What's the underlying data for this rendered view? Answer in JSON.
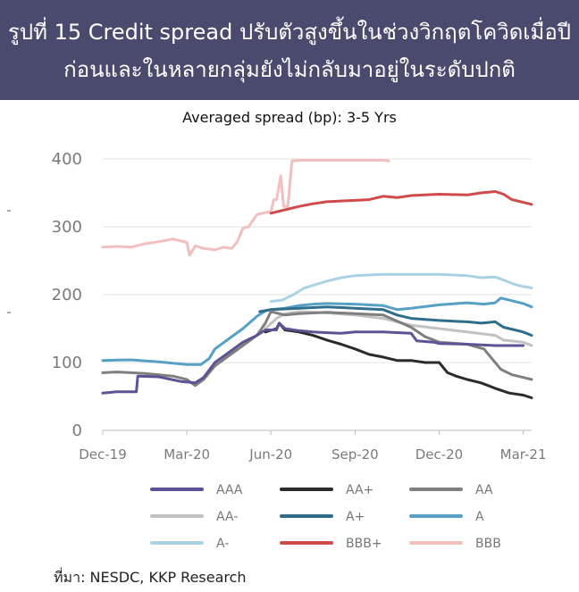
{
  "header": {
    "line1": "รูปที่ 15 Credit spread ปรับตัวสูงขึ้นในช่วงวิกฤตโควิดเมื่อปี",
    "line2": "ก่อนและในหลายกลุ่มยังไม่กลับมาอยู่ในระดับปกติ"
  },
  "source": "ที่มา: NESDC, KKP Research",
  "chart_data": {
    "type": "line",
    "title": "Averaged spread (bp): 3-5 Yrs",
    "xlabel": "",
    "ylabel": "",
    "x_ticks": [
      "Dec-19",
      "Mar-20",
      "Jun-20",
      "Sep-20",
      "Dec-20",
      "Mar-21"
    ],
    "x_tick_pos": [
      0,
      3,
      6,
      9,
      12,
      15
    ],
    "xlim": [
      0,
      15.3
    ],
    "y_ticks": [
      0,
      100,
      200,
      300,
      400
    ],
    "ylim": [
      0,
      400
    ],
    "grid": true,
    "legend_position": "bottom",
    "series": [
      {
        "name": "AAA",
        "color": "#5b5396",
        "points": [
          [
            0,
            55
          ],
          [
            0.5,
            57
          ],
          [
            1.2,
            57
          ],
          [
            1.25,
            80
          ],
          [
            2,
            79
          ],
          [
            2.8,
            72
          ],
          [
            3.3,
            70
          ],
          [
            3.6,
            78
          ],
          [
            4,
            100
          ],
          [
            4.5,
            115
          ],
          [
            5,
            130
          ],
          [
            5.5,
            140
          ],
          [
            5.8,
            148
          ],
          [
            6.2,
            148
          ],
          [
            6.3,
            158
          ],
          [
            6.5,
            150
          ],
          [
            7,
            147
          ],
          [
            7.5,
            145
          ],
          [
            8,
            144
          ],
          [
            8.5,
            143
          ],
          [
            9,
            145
          ],
          [
            10,
            145
          ],
          [
            11,
            143
          ],
          [
            11.2,
            132
          ],
          [
            11.8,
            130
          ],
          [
            12,
            128
          ],
          [
            13,
            127
          ],
          [
            14,
            125
          ],
          [
            15,
            125
          ]
        ]
      },
      {
        "name": "AA+",
        "color": "#2b2b2b",
        "points": [
          [
            5.8,
            145
          ],
          [
            6.2,
            150
          ],
          [
            6.3,
            158
          ],
          [
            6.5,
            148
          ],
          [
            7,
            145
          ],
          [
            7.5,
            140
          ],
          [
            8,
            133
          ],
          [
            8.5,
            127
          ],
          [
            9,
            120
          ],
          [
            9.5,
            112
          ],
          [
            10,
            108
          ],
          [
            10.5,
            103
          ],
          [
            11,
            103
          ],
          [
            11.5,
            100
          ],
          [
            12,
            100
          ],
          [
            12.3,
            85
          ],
          [
            12.6,
            80
          ],
          [
            13,
            75
          ],
          [
            13.5,
            70
          ],
          [
            14,
            62
          ],
          [
            14.5,
            55
          ],
          [
            15,
            52
          ],
          [
            15.3,
            48
          ]
        ]
      },
      {
        "name": "AA",
        "color": "#7f7f7f",
        "points": [
          [
            0,
            85
          ],
          [
            0.5,
            86
          ],
          [
            1,
            85
          ],
          [
            1.5,
            84
          ],
          [
            2,
            82
          ],
          [
            2.5,
            80
          ],
          [
            3,
            75
          ],
          [
            3.3,
            66
          ],
          [
            3.6,
            75
          ],
          [
            4,
            95
          ],
          [
            4.5,
            110
          ],
          [
            5,
            125
          ],
          [
            5.5,
            140
          ],
          [
            5.8,
            158
          ],
          [
            6,
            175
          ],
          [
            6.5,
            170
          ],
          [
            7,
            172
          ],
          [
            8,
            174
          ],
          [
            9,
            172
          ],
          [
            10,
            170
          ],
          [
            11,
            152
          ],
          [
            11.5,
            138
          ],
          [
            12,
            130
          ],
          [
            13,
            127
          ],
          [
            13.6,
            120
          ],
          [
            13.8,
            110
          ],
          [
            14.2,
            90
          ],
          [
            14.6,
            82
          ],
          [
            15,
            78
          ],
          [
            15.3,
            75
          ]
        ]
      },
      {
        "name": "AA-",
        "color": "#c2c2c2",
        "points": [
          [
            5.8,
            150
          ],
          [
            6.2,
            165
          ],
          [
            6.5,
            172
          ],
          [
            7,
            175
          ],
          [
            8,
            173
          ],
          [
            9,
            170
          ],
          [
            10,
            165
          ],
          [
            10.5,
            160
          ],
          [
            11,
            155
          ],
          [
            12,
            150
          ],
          [
            13,
            145
          ],
          [
            14,
            140
          ],
          [
            14.3,
            133
          ],
          [
            15,
            130
          ],
          [
            15.3,
            125
          ]
        ]
      },
      {
        "name": "A+",
        "color": "#2f6e8b",
        "points": [
          [
            5.6,
            175
          ],
          [
            6,
            178
          ],
          [
            7,
            180
          ],
          [
            8,
            182
          ],
          [
            9,
            180
          ],
          [
            10,
            178
          ],
          [
            10.5,
            170
          ],
          [
            11,
            165
          ],
          [
            12,
            162
          ],
          [
            13,
            160
          ],
          [
            13.5,
            158
          ],
          [
            14,
            160
          ],
          [
            14.3,
            152
          ],
          [
            14.7,
            148
          ],
          [
            15,
            145
          ],
          [
            15.3,
            140
          ]
        ]
      },
      {
        "name": "A",
        "color": "#56a0c6",
        "points": [
          [
            0,
            103
          ],
          [
            1,
            104
          ],
          [
            2,
            101
          ],
          [
            2.5,
            99
          ],
          [
            3,
            97
          ],
          [
            3.5,
            97
          ],
          [
            3.8,
            106
          ],
          [
            4,
            120
          ],
          [
            4.5,
            135
          ],
          [
            5,
            150
          ],
          [
            5.5,
            168
          ],
          [
            5.8,
            176
          ],
          [
            6,
            178
          ],
          [
            6.5,
            180
          ],
          [
            7,
            184
          ],
          [
            7.5,
            186
          ],
          [
            8,
            187
          ],
          [
            9,
            186
          ],
          [
            10,
            184
          ],
          [
            10.5,
            178
          ],
          [
            11,
            180
          ],
          [
            12,
            185
          ],
          [
            13,
            188
          ],
          [
            13.6,
            186
          ],
          [
            14,
            188
          ],
          [
            14.2,
            195
          ],
          [
            14.5,
            192
          ],
          [
            15,
            187
          ],
          [
            15.3,
            182
          ]
        ]
      },
      {
        "name": "A-",
        "color": "#a9d2e4",
        "points": [
          [
            6,
            190
          ],
          [
            6.4,
            192
          ],
          [
            6.8,
            200
          ],
          [
            7.2,
            210
          ],
          [
            8,
            220
          ],
          [
            8.5,
            225
          ],
          [
            9,
            228
          ],
          [
            10,
            230
          ],
          [
            11,
            230
          ],
          [
            12,
            230
          ],
          [
            13,
            228
          ],
          [
            13.5,
            225
          ],
          [
            14,
            226
          ],
          [
            14.4,
            220
          ],
          [
            14.7,
            215
          ],
          [
            15,
            212
          ],
          [
            15.3,
            210
          ]
        ]
      },
      {
        "name": "BBB+",
        "color": "#d04a4a",
        "points": [
          [
            6,
            320
          ],
          [
            6.5,
            325
          ],
          [
            7,
            330
          ],
          [
            7.5,
            334
          ],
          [
            8,
            337
          ],
          [
            9,
            339
          ],
          [
            9.5,
            340
          ],
          [
            10,
            345
          ],
          [
            10.5,
            343
          ],
          [
            11,
            346
          ],
          [
            12,
            348
          ],
          [
            13,
            347
          ],
          [
            13.5,
            350
          ],
          [
            14,
            352
          ],
          [
            14.3,
            348
          ],
          [
            14.6,
            340
          ],
          [
            15,
            336
          ],
          [
            15.3,
            333
          ]
        ]
      },
      {
        "name": "BBB",
        "color": "#f2bfbf",
        "points": [
          [
            0,
            270
          ],
          [
            0.5,
            271
          ],
          [
            1,
            270
          ],
          [
            1.5,
            275
          ],
          [
            2,
            278
          ],
          [
            2.5,
            282
          ],
          [
            3,
            277
          ],
          [
            3.1,
            258
          ],
          [
            3.3,
            272
          ],
          [
            3.6,
            268
          ],
          [
            4,
            266
          ],
          [
            4.3,
            270
          ],
          [
            4.6,
            268
          ],
          [
            4.8,
            278
          ],
          [
            5,
            298
          ],
          [
            5.2,
            300
          ],
          [
            5.5,
            318
          ],
          [
            5.9,
            322
          ],
          [
            6,
            322
          ],
          [
            6.1,
            340
          ],
          [
            6.2,
            340
          ],
          [
            6.35,
            375
          ],
          [
            6.45,
            330
          ],
          [
            6.6,
            330
          ],
          [
            6.75,
            397
          ],
          [
            7,
            398
          ],
          [
            8,
            398
          ],
          [
            9,
            398
          ],
          [
            10,
            398
          ],
          [
            10.2,
            397
          ]
        ]
      }
    ]
  }
}
